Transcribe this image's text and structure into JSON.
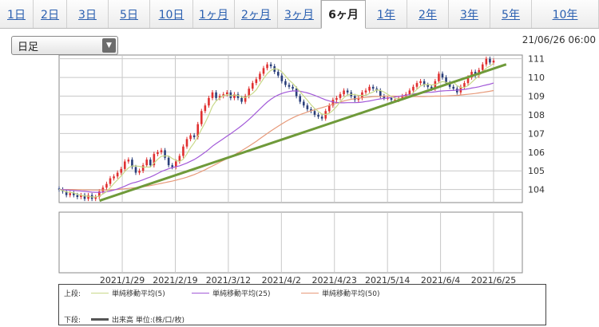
{
  "tabs": [
    "1日",
    "2日",
    "3日",
    "5日",
    "10日",
    "1ヶ月",
    "2ヶ月",
    "3ヶ月",
    "6ヶ月",
    "1年",
    "2年",
    "3年",
    "5年",
    "10年"
  ],
  "active_tab": "6ヶ月",
  "period_select": {
    "value": "日足"
  },
  "timestamp": "21/06/26 06:00",
  "legend": {
    "upper_label": "上段:",
    "lower_label": "下段:",
    "ma5": "単純移動平均(5)",
    "ma25": "単純移動平均(25)",
    "ma50": "単純移動平均(50)",
    "volume": "出来高 単位:(株/口/枚)"
  },
  "colors": {
    "up": "#e03030",
    "down": "#2a3f7a",
    "ma5": "#c9d98a",
    "ma25": "#a25ad8",
    "ma50": "#e79a7a",
    "trend": "#6f9a3a",
    "grid": "#c8c8c8",
    "volume": "#555555"
  },
  "chart_data": {
    "type": "candlestick",
    "x_tick_labels": [
      "2021/1/29",
      "2021/2/19",
      "2021/3/12",
      "2021/4/2",
      "2021/4/23",
      "2021/5/14",
      "2021/6/4",
      "2021/6/25"
    ],
    "y_tick_labels": [
      "104",
      "105",
      "106",
      "107",
      "108",
      "109",
      "110",
      "111"
    ],
    "ylim": [
      103.3,
      111.2
    ],
    "y_ticks": [
      104,
      105,
      106,
      107,
      108,
      109,
      110,
      111
    ],
    "x_ticks": [
      "2021-01-29",
      "2021-02-19",
      "2021-03-12",
      "2021-04-02",
      "2021-04-23",
      "2021-05-14",
      "2021-06-04",
      "2021-06-25"
    ],
    "x_start": "2021-01-04",
    "x_end": "2021-06-25",
    "close": [
      104.0,
      103.9,
      103.7,
      103.8,
      103.7,
      103.6,
      103.7,
      103.5,
      103.7,
      103.5,
      103.6,
      103.9,
      104.1,
      104.3,
      104.6,
      104.7,
      104.9,
      105.1,
      105.5,
      105.6,
      105.2,
      104.9,
      105.0,
      105.3,
      105.6,
      105.3,
      105.9,
      106.0,
      106.1,
      105.7,
      105.3,
      105.2,
      105.5,
      105.8,
      106.3,
      106.7,
      106.9,
      106.8,
      107.5,
      108.2,
      108.5,
      108.9,
      109.2,
      108.9,
      109.0,
      109.1,
      109.2,
      108.9,
      109.1,
      108.9,
      108.7,
      109.0,
      109.4,
      109.7,
      109.9,
      110.2,
      110.5,
      110.7,
      110.6,
      110.3,
      110.1,
      109.8,
      109.6,
      109.5,
      109.4,
      109.0,
      108.7,
      108.5,
      108.3,
      108.2,
      108.0,
      107.9,
      107.8,
      108.2,
      108.5,
      108.8,
      108.9,
      109.1,
      109.3,
      109.2,
      109.0,
      108.8,
      108.9,
      109.2,
      109.3,
      109.5,
      109.4,
      109.3,
      109.0,
      108.9,
      108.9,
      108.8,
      108.8,
      108.9,
      109.0,
      109.1,
      109.3,
      109.5,
      109.7,
      109.8,
      109.6,
      109.5,
      109.4,
      109.8,
      110.2,
      110.0,
      109.7,
      109.5,
      109.4,
      109.2,
      109.5,
      109.7,
      110.0,
      110.3,
      110.1,
      110.4,
      110.7,
      111.0,
      110.8,
      110.9
    ],
    "ma5": [
      104.0,
      103.95,
      103.87,
      103.85,
      103.82,
      103.74,
      103.7,
      103.66,
      103.64,
      103.6,
      103.6,
      103.64,
      103.76,
      103.88,
      104.1,
      104.32,
      104.52,
      104.72,
      104.96,
      105.16,
      105.26,
      105.26,
      105.24,
      105.2,
      105.2,
      105.2,
      105.42,
      105.62,
      105.78,
      105.8,
      105.8,
      105.66,
      105.56,
      105.5,
      105.62,
      105.9,
      106.24,
      106.5,
      106.84,
      107.22,
      107.58,
      107.98,
      108.46,
      108.74,
      108.9,
      109.02,
      109.08,
      109.02,
      109.06,
      109.04,
      108.96,
      108.92,
      109.02,
      109.14,
      109.34,
      109.64,
      109.94,
      110.2,
      110.38,
      110.46,
      110.44,
      110.3,
      110.08,
      109.86,
      109.68,
      109.46,
      109.24,
      109.0,
      108.78,
      108.54,
      108.34,
      108.18,
      108.04,
      108.02,
      108.08,
      108.24,
      108.44,
      108.7,
      108.92,
      109.06,
      109.1,
      109.08,
      109.04,
      109.04,
      109.04,
      109.14,
      109.22,
      109.34,
      109.3,
      109.22,
      109.1,
      108.98,
      108.88,
      108.86,
      108.88,
      108.92,
      109.02,
      109.18,
      109.36,
      109.54,
      109.62,
      109.62,
      109.6,
      109.62,
      109.7,
      109.78,
      109.74,
      109.68,
      109.76,
      109.56,
      109.46,
      109.46,
      109.56,
      109.74,
      109.92,
      110.1,
      110.3,
      110.5,
      110.6,
      110.76
    ],
    "ma25": [
      104.0,
      103.99,
      103.98,
      103.96,
      103.95,
      103.93,
      103.92,
      103.9,
      103.88,
      103.86,
      103.85,
      103.85,
      103.86,
      103.88,
      103.92,
      103.97,
      104.03,
      104.1,
      104.18,
      104.27,
      104.34,
      104.39,
      104.45,
      104.52,
      104.6,
      104.67,
      104.76,
      104.86,
      104.96,
      105.04,
      105.11,
      105.17,
      105.22,
      105.27,
      105.34,
      105.42,
      105.51,
      105.6,
      105.72,
      105.86,
      106.0,
      106.15,
      106.32,
      106.46,
      106.59,
      106.72,
      106.86,
      106.99,
      107.13,
      107.27,
      107.42,
      107.58,
      107.75,
      107.93,
      108.12,
      108.31,
      108.5,
      108.68,
      108.83,
      108.96,
      109.06,
      109.14,
      109.2,
      109.25,
      109.28,
      109.28,
      109.26,
      109.22,
      109.17,
      109.11,
      109.04,
      108.96,
      108.88,
      108.8,
      108.74,
      108.69,
      108.66,
      108.64,
      108.64,
      108.65,
      108.65,
      108.65,
      108.66,
      108.68,
      108.71,
      108.74,
      108.78,
      108.82,
      108.85,
      108.88,
      108.9,
      108.93,
      108.96,
      108.99,
      109.02,
      109.05,
      109.08,
      109.11,
      109.14,
      109.16,
      109.18,
      109.2,
      109.21,
      109.23,
      109.26,
      109.28,
      109.29,
      109.3,
      109.31,
      109.32,
      109.34,
      109.36,
      109.39,
      109.43,
      109.46,
      109.5,
      109.55,
      109.6,
      109.64,
      109.7
    ],
    "ma50": [
      104.0,
      104.0,
      104.0,
      104.0,
      104.0,
      103.99,
      103.99,
      103.98,
      103.98,
      103.97,
      103.97,
      103.97,
      103.97,
      103.97,
      103.98,
      103.99,
      104.0,
      104.02,
      104.04,
      104.06,
      104.08,
      104.1,
      104.12,
      104.15,
      104.18,
      104.21,
      104.25,
      104.29,
      104.33,
      104.37,
      104.41,
      104.45,
      104.5,
      104.55,
      104.6,
      104.66,
      104.73,
      104.8,
      104.88,
      104.97,
      105.06,
      105.16,
      105.26,
      105.36,
      105.46,
      105.56,
      105.66,
      105.76,
      105.86,
      105.97,
      106.08,
      106.2,
      106.32,
      106.45,
      106.58,
      106.72,
      106.86,
      107.0,
      107.13,
      107.26,
      107.39,
      107.51,
      107.63,
      107.74,
      107.84,
      107.93,
      108.01,
      108.08,
      108.15,
      108.21,
      108.27,
      108.33,
      108.38,
      108.44,
      108.5,
      108.56,
      108.62,
      108.68,
      108.74,
      108.79,
      108.83,
      108.86,
      108.89,
      108.91,
      108.93,
      108.95,
      108.97,
      108.98,
      108.99,
      109.0,
      109.0,
      109.0,
      109.0,
      108.99,
      108.99,
      108.98,
      108.98,
      108.98,
      108.98,
      108.98,
      108.98,
      108.99,
      108.99,
      109.0,
      109.0,
      109.0,
      109.01,
      109.02,
      109.03,
      109.04,
      109.06,
      109.08,
      109.1,
      109.12,
      109.14,
      109.17,
      109.2,
      109.23,
      109.26,
      109.3
    ],
    "trendline": {
      "from": {
        "x": "2021-01-20",
        "y": 103.4
      },
      "to": {
        "x": "2021-06-30",
        "y": 110.7
      }
    }
  }
}
